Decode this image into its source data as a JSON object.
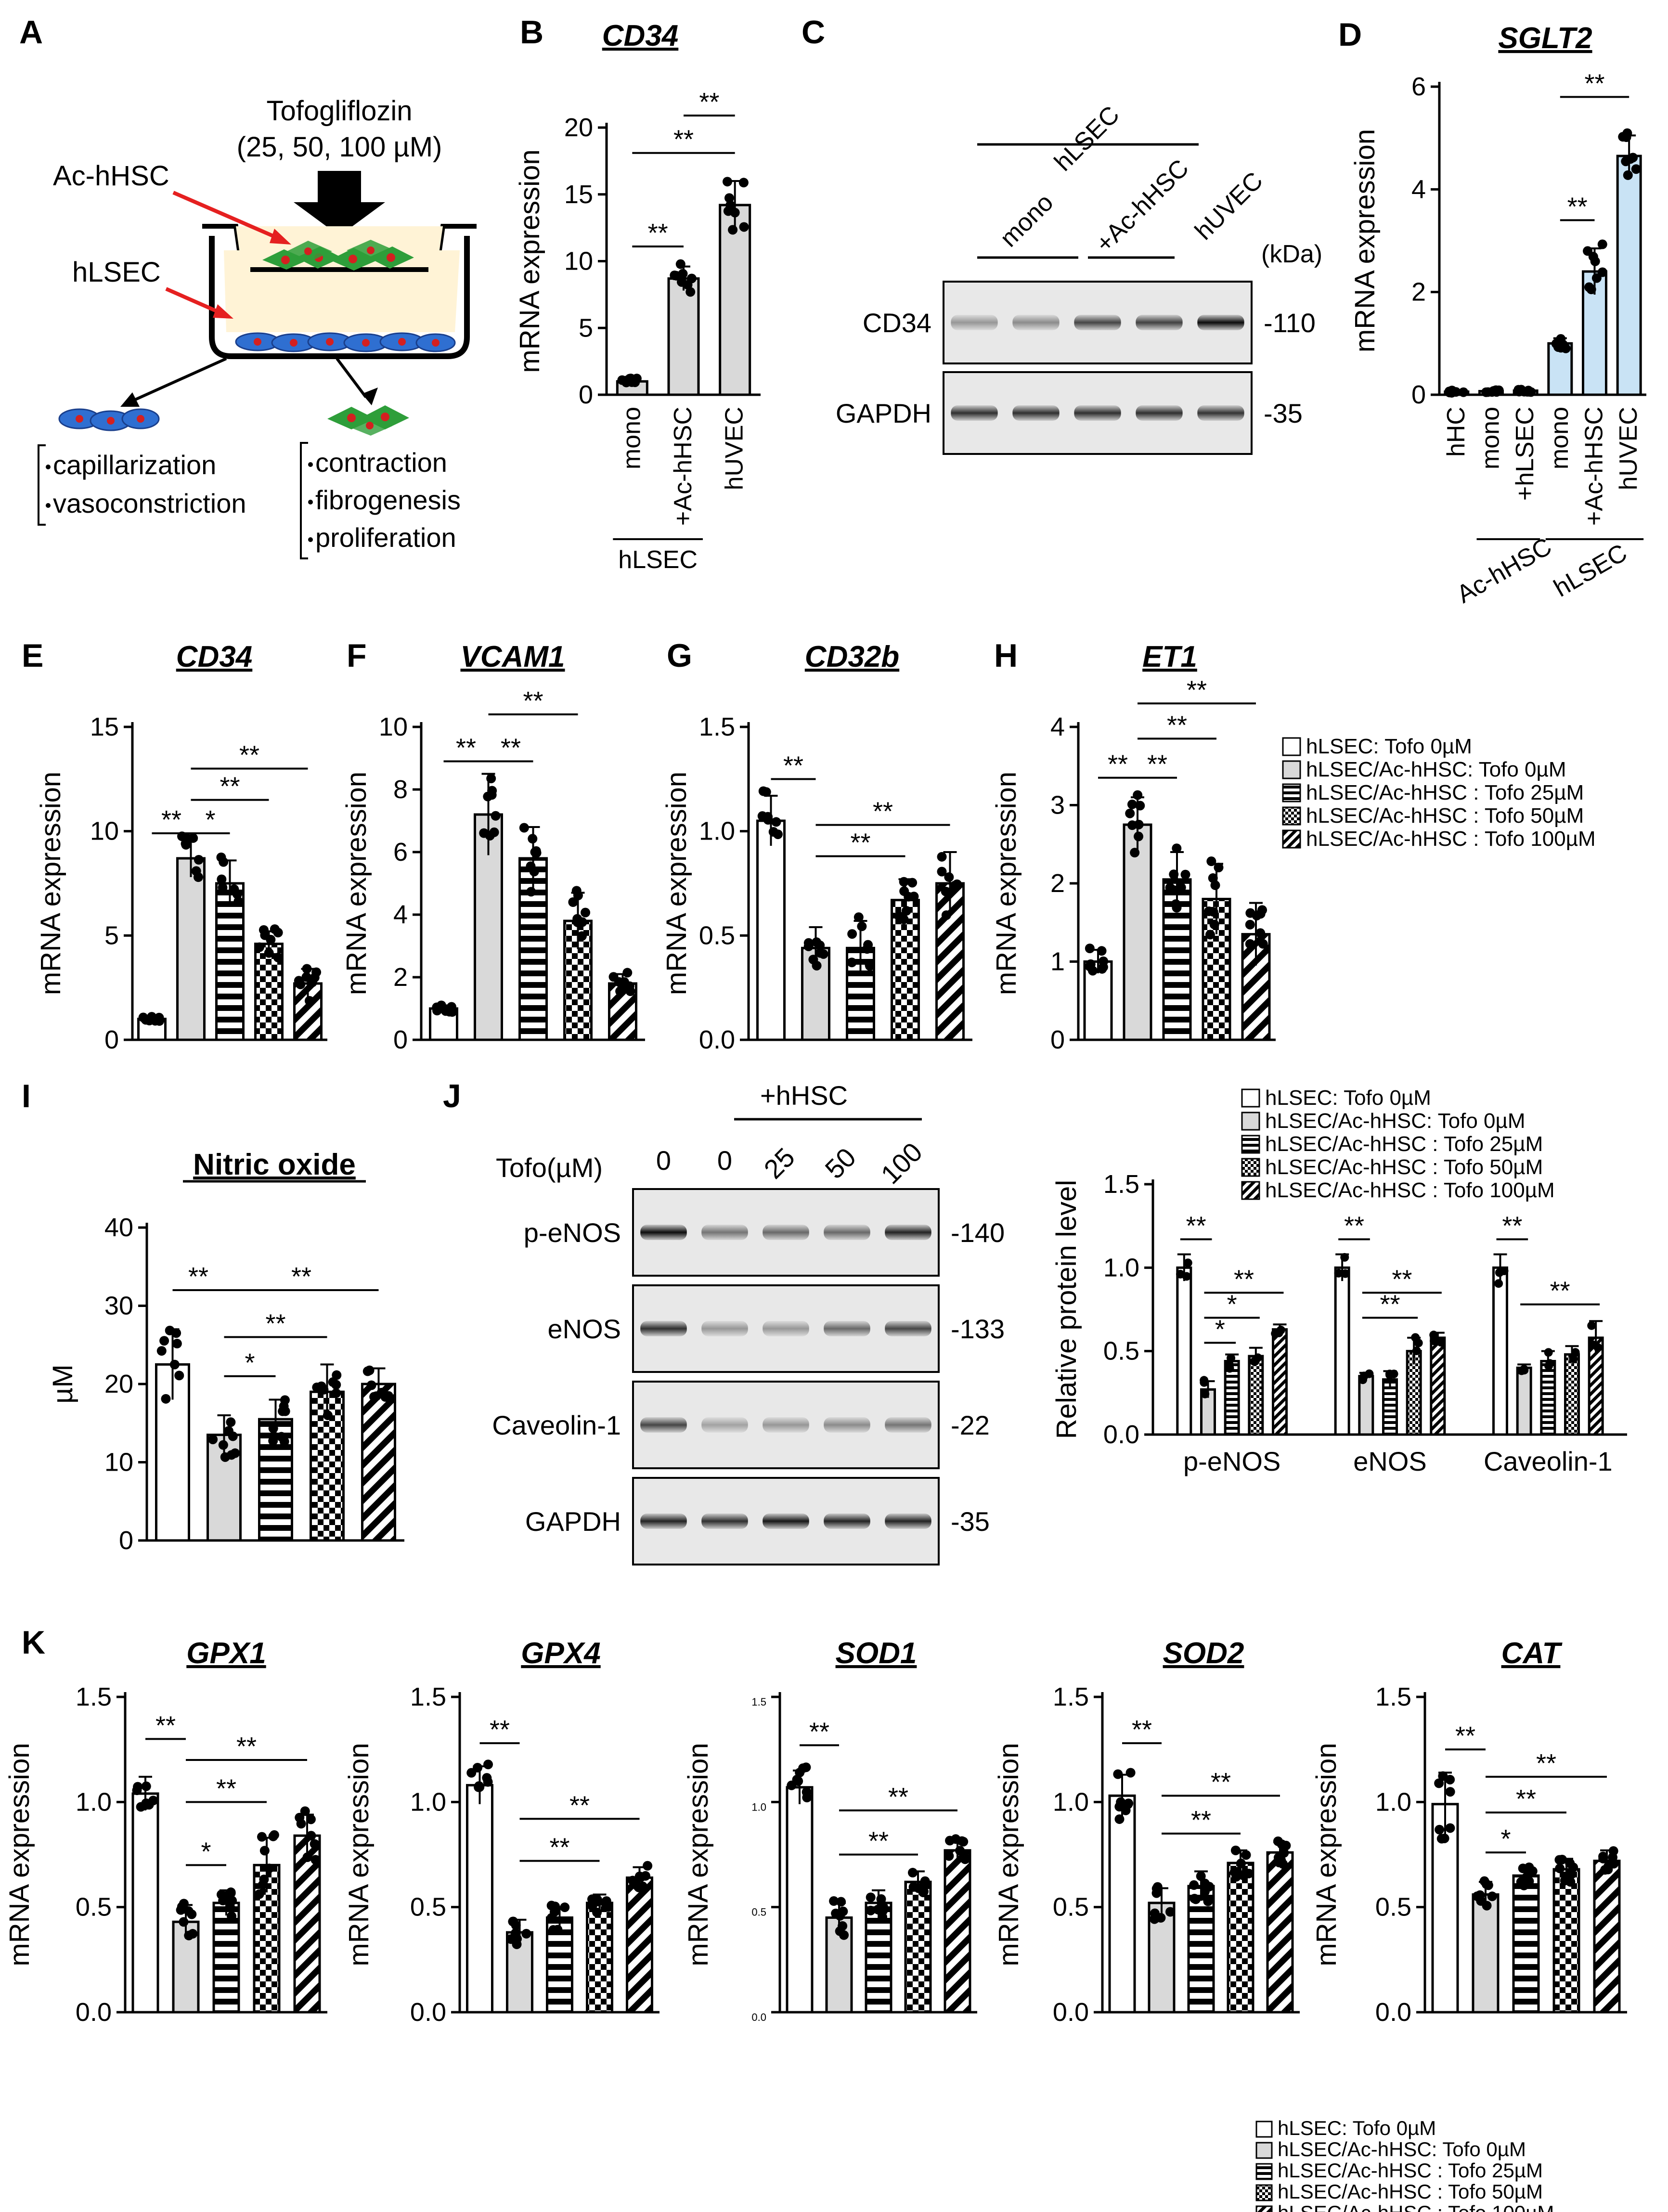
{
  "panel_labels": {
    "A": "A",
    "B": "B",
    "C": "C",
    "D": "D",
    "E": "E",
    "F": "F",
    "G": "G",
    "H": "H",
    "I": "I",
    "J": "J",
    "K": "K"
  },
  "colors": {
    "gray_fill": "#d9d9d9",
    "blue_fill": "#c9e3f5",
    "hsc_green": "#2e9e3a",
    "lsec_blue": "#2f6fd1",
    "nucleus_red": "#d42020",
    "transwell_fill": "#fff3d6",
    "arrow_red": "#e52020"
  },
  "legend_entries": [
    "hLSEC: Tofo 0µM",
    "hLSEC/Ac-hHSC: Tofo 0µM",
    "hLSEC/Ac-hHSC : Tofo 25µM",
    "hLSEC/Ac-hHSC : Tofo 50µM",
    "hLSEC/Ac-hHSC : Tofo 100µM"
  ],
  "schematic": {
    "drug_line1": "Tofogliflozin",
    "drug_line2": "(25, 50, 100 µM)",
    "hsc_label": "Ac-hHSC",
    "lsec_label": "hLSEC",
    "lsec_effects": [
      "capillarization",
      "vasoconstriction"
    ],
    "hsc_effects": [
      "contraction",
      "fibrogenesis",
      "proliferation"
    ]
  },
  "ylabels": {
    "mrna": "mRNA expression",
    "um": "µM",
    "rel_protein": "Relative protein level"
  },
  "blot_C": {
    "group_label": "hLSEC",
    "lane_groups": [
      "mono",
      "+Ac-hHSC",
      "hUVEC"
    ],
    "kda_label": "(kDa)",
    "rows": [
      {
        "name": "CD34",
        "kda": "-110",
        "intensities": [
          0.35,
          0.4,
          0.7,
          0.72,
          0.95
        ]
      },
      {
        "name": "GAPDH",
        "kda": "-35",
        "intensities": [
          0.8,
          0.8,
          0.8,
          0.8,
          0.78
        ]
      }
    ]
  },
  "blot_J": {
    "group_label": "+hHSC",
    "tofo_label": "Tofo(µM)",
    "lanes": [
      "0",
      "0",
      "25",
      "50",
      "100"
    ],
    "rows": [
      {
        "name": "p-eNOS",
        "kda": "-140",
        "intensities": [
          0.95,
          0.5,
          0.55,
          0.55,
          0.85
        ]
      },
      {
        "name": "eNOS",
        "kda": "-133",
        "intensities": [
          0.8,
          0.35,
          0.35,
          0.55,
          0.7
        ]
      },
      {
        "name": "Caveolin-1",
        "kda": "-22",
        "intensities": [
          0.7,
          0.3,
          0.35,
          0.4,
          0.5
        ]
      },
      {
        "name": "GAPDH",
        "kda": "-35",
        "intensities": [
          0.85,
          0.8,
          0.9,
          0.85,
          0.85
        ]
      }
    ]
  },
  "chart_data": [
    {
      "id": "B",
      "type": "bar",
      "title": "CD34",
      "title_italic": true,
      "categories": [
        "mono",
        "+Ac-hHSC",
        "hUVEC"
      ],
      "group_label": "hLSEC",
      "group_span": [
        0,
        1
      ],
      "values": [
        1.0,
        8.7,
        14.2
      ],
      "errors": [
        0.2,
        0.9,
        1.8
      ],
      "fills": [
        "gray",
        "gray",
        "gray"
      ],
      "ylim": [
        0,
        20
      ],
      "yticks": [
        0,
        5,
        10,
        15,
        20
      ],
      "ytick_labels": [
        "0",
        "5",
        "10",
        "15",
        "20"
      ],
      "ylabel": "mRNA expression",
      "sig": [
        {
          "from": 0,
          "to": 1,
          "y": 11.1,
          "label": "**"
        },
        {
          "from": 0,
          "to": 2,
          "y": 18.1,
          "label": "**"
        },
        {
          "from": 1,
          "to": 2,
          "y": 20.9,
          "label": "**"
        }
      ]
    },
    {
      "id": "D",
      "type": "bar",
      "title": "SGLT2",
      "title_italic": true,
      "categories": [
        "hHC",
        "mono",
        "+hLSEC",
        "mono",
        "+Ac-hHSC",
        "hUVEC"
      ],
      "group_labels": [
        {
          "label": "Ac-hHSC",
          "span": [
            1,
            2
          ]
        },
        {
          "label": "hLSEC",
          "span": [
            3,
            5
          ]
        }
      ],
      "values": [
        0.06,
        0.07,
        0.08,
        1.0,
        2.4,
        4.65
      ],
      "errors": [
        0.02,
        0.02,
        0.03,
        0.1,
        0.45,
        0.4
      ],
      "fills": [
        "gray",
        "gray",
        "gray",
        "blue",
        "blue",
        "blue"
      ],
      "ylim": [
        0,
        6
      ],
      "yticks": [
        0,
        2,
        4,
        6
      ],
      "ytick_labels": [
        "0",
        "2",
        "4",
        "6"
      ],
      "ylabel": "mRNA expression",
      "sig": [
        {
          "from": 3,
          "to": 4,
          "y": 3.4,
          "label": "**"
        },
        {
          "from": 3,
          "to": 5,
          "y": 5.8,
          "label": "**"
        }
      ]
    },
    {
      "id": "E",
      "type": "bar",
      "title": "CD34",
      "title_italic": true,
      "values": [
        1.0,
        8.7,
        7.5,
        4.6,
        2.7
      ],
      "errors": [
        0.1,
        0.9,
        1.1,
        0.6,
        0.7
      ],
      "fills": [
        "white",
        "gray",
        "hstripe",
        "checker",
        "diag"
      ],
      "ylim": [
        0,
        15
      ],
      "yticks": [
        0,
        5,
        10,
        15
      ],
      "ytick_labels": [
        "0",
        "5",
        "10",
        "15"
      ],
      "ylabel": "mRNA expression",
      "sig": [
        {
          "from": 0,
          "to": 1,
          "y": 9.9,
          "label": "**"
        },
        {
          "from": 1,
          "to": 2,
          "y": 9.9,
          "label": "*"
        },
        {
          "from": 1,
          "to": 3,
          "y": 11.5,
          "label": "**"
        },
        {
          "from": 1,
          "to": 4,
          "y": 13.0,
          "label": "**"
        }
      ]
    },
    {
      "id": "F",
      "type": "bar",
      "title": "VCAM1",
      "title_italic": true,
      "values": [
        1.0,
        7.2,
        5.8,
        3.8,
        1.8
      ],
      "errors": [
        0.1,
        1.3,
        1.0,
        0.9,
        0.3
      ],
      "fills": [
        "white",
        "gray",
        "hstripe",
        "checker",
        "diag"
      ],
      "ylim": [
        0,
        10
      ],
      "yticks": [
        0,
        2,
        4,
        6,
        8,
        10
      ],
      "ytick_labels": [
        "0",
        "2",
        "4",
        "6",
        "8",
        "10"
      ],
      "ylabel": "mRNA expression",
      "sig": [
        {
          "from": 0,
          "to": 1,
          "y": 8.9,
          "label": "**"
        },
        {
          "from": 1,
          "to": 2,
          "y": 8.9,
          "label": "**"
        },
        {
          "from": 1,
          "to": 3,
          "y": 10.4,
          "label": "**"
        }
      ]
    },
    {
      "id": "G",
      "type": "bar",
      "title": "CD32b",
      "title_italic": true,
      "values": [
        1.05,
        0.44,
        0.44,
        0.67,
        0.75
      ],
      "errors": [
        0.12,
        0.1,
        0.13,
        0.1,
        0.15
      ],
      "fills": [
        "white",
        "gray",
        "hstripe",
        "checker",
        "diag"
      ],
      "ylim": [
        0,
        1.5
      ],
      "yticks": [
        0,
        0.5,
        1.0,
        1.5
      ],
      "ytick_labels": [
        "0.0",
        "0.5",
        "1.0",
        "1.5"
      ],
      "ylabel": "mRNA expression",
      "sig": [
        {
          "from": 0,
          "to": 1,
          "y": 1.25,
          "label": "**"
        },
        {
          "from": 1,
          "to": 3,
          "y": 0.88,
          "label": "**"
        },
        {
          "from": 1,
          "to": 4,
          "y": 1.03,
          "label": "**"
        }
      ]
    },
    {
      "id": "H",
      "type": "bar",
      "title": "ET1",
      "title_italic": true,
      "values": [
        1.0,
        2.75,
        2.05,
        1.8,
        1.35
      ],
      "errors": [
        0.15,
        0.35,
        0.35,
        0.45,
        0.4
      ],
      "fills": [
        "white",
        "gray",
        "hstripe",
        "checker",
        "diag"
      ],
      "ylim": [
        0,
        4
      ],
      "yticks": [
        0,
        1,
        2,
        3,
        4
      ],
      "ytick_labels": [
        "0",
        "1",
        "2",
        "3",
        "4"
      ],
      "ylabel": "mRNA expression",
      "sig": [
        {
          "from": 0,
          "to": 1,
          "y": 3.35,
          "label": "**"
        },
        {
          "from": 1,
          "to": 2,
          "y": 3.35,
          "label": "**"
        },
        {
          "from": 1,
          "to": 3,
          "y": 3.85,
          "label": "**"
        },
        {
          "from": 1,
          "to": 4,
          "y": 4.3,
          "label": "**"
        }
      ]
    },
    {
      "id": "I",
      "type": "bar",
      "title": "Nitric oxide",
      "title_italic": false,
      "values": [
        22.5,
        13.5,
        15.5,
        19.0,
        20.0
      ],
      "errors": [
        4.5,
        2.5,
        2.5,
        3.5,
        2.0
      ],
      "fills": [
        "white",
        "gray",
        "hstripe",
        "checker",
        "diag"
      ],
      "ylim": [
        0,
        40
      ],
      "yticks": [
        0,
        10,
        20,
        30,
        40
      ],
      "ytick_labels": [
        "0",
        "10",
        "20",
        "30",
        "40"
      ],
      "ylabel": "µM",
      "sig": [
        {
          "from": 0,
          "to": 1,
          "y": 32.0,
          "label": "**"
        },
        {
          "from": 1,
          "to": 2,
          "y": 21.0,
          "label": "*"
        },
        {
          "from": 1,
          "to": 3,
          "y": 26.0,
          "label": "**"
        },
        {
          "from": 1,
          "to": 4,
          "y": 32.0,
          "label": "**"
        }
      ]
    },
    {
      "id": "J",
      "type": "grouped_bar",
      "groups": [
        "p-eNOS",
        "eNOS",
        "Caveolin-1"
      ],
      "values": [
        [
          1.0,
          0.27,
          0.44,
          0.47,
          0.63
        ],
        [
          1.0,
          0.35,
          0.33,
          0.5,
          0.58
        ],
        [
          1.0,
          0.4,
          0.44,
          0.48,
          0.58
        ]
      ],
      "errors": [
        [
          0.08,
          0.05,
          0.04,
          0.05,
          0.03
        ],
        [
          0.08,
          0.02,
          0.05,
          0.08,
          0.03
        ],
        [
          0.08,
          0.02,
          0.06,
          0.05,
          0.1
        ]
      ],
      "fills": [
        "white",
        "gray",
        "hstripe",
        "checker",
        "diag"
      ],
      "ylim": [
        0,
        1.5
      ],
      "yticks": [
        0,
        0.5,
        1.0,
        1.5
      ],
      "ytick_labels": [
        "0.0",
        "0.5",
        "1.0",
        "1.5"
      ],
      "ylabel": "Relative protein level",
      "sig": [
        {
          "group": 0,
          "from": 0,
          "to": 1,
          "y": 1.17,
          "label": "**"
        },
        {
          "group": 0,
          "from": 1,
          "to": 2,
          "y": 0.55,
          "label": "*"
        },
        {
          "group": 0,
          "from": 1,
          "to": 3,
          "y": 0.7,
          "label": "*"
        },
        {
          "group": 0,
          "from": 1,
          "to": 4,
          "y": 0.85,
          "label": "**"
        },
        {
          "group": 1,
          "from": 0,
          "to": 1,
          "y": 1.17,
          "label": "**"
        },
        {
          "group": 1,
          "from": 1,
          "to": 3,
          "y": 0.7,
          "label": "**"
        },
        {
          "group": 1,
          "from": 1,
          "to": 4,
          "y": 0.85,
          "label": "**"
        },
        {
          "group": 2,
          "from": 0,
          "to": 1,
          "y": 1.17,
          "label": "**"
        },
        {
          "group": 2,
          "from": 1,
          "to": 4,
          "y": 0.78,
          "label": "**"
        }
      ]
    },
    {
      "id": "K1",
      "type": "bar",
      "title": "GPX1",
      "title_italic": true,
      "values": [
        1.04,
        0.43,
        0.52,
        0.7,
        0.84
      ],
      "errors": [
        0.08,
        0.08,
        0.06,
        0.13,
        0.1
      ],
      "fills": [
        "white",
        "gray",
        "hstripe",
        "checker",
        "diag"
      ],
      "ylim": [
        0,
        1.5
      ],
      "yticks": [
        0,
        0.5,
        1.0,
        1.5
      ],
      "ytick_labels": [
        "0.0",
        "0.5",
        "1.0",
        "1.5"
      ],
      "ylabel": "mRNA expression",
      "sig": [
        {
          "from": 0,
          "to": 1,
          "y": 1.3,
          "label": "**"
        },
        {
          "from": 1,
          "to": 2,
          "y": 0.7,
          "label": "*"
        },
        {
          "from": 1,
          "to": 3,
          "y": 1.0,
          "label": "**"
        },
        {
          "from": 1,
          "to": 4,
          "y": 1.2,
          "label": "**"
        }
      ]
    },
    {
      "id": "K2",
      "type": "bar",
      "title": "GPX4",
      "title_italic": true,
      "values": [
        1.08,
        0.38,
        0.45,
        0.52,
        0.64
      ],
      "errors": [
        0.09,
        0.06,
        0.05,
        0.04,
        0.05
      ],
      "fills": [
        "white",
        "gray",
        "hstripe",
        "checker",
        "diag"
      ],
      "ylim": [
        0,
        1.5
      ],
      "yticks": [
        0,
        0.5,
        1.0,
        1.5
      ],
      "ytick_labels": [
        "0.0",
        "0.5",
        "1.0",
        "1.5"
      ],
      "ylabel": "mRNA expression",
      "sig": [
        {
          "from": 0,
          "to": 1,
          "y": 1.28,
          "label": "**"
        },
        {
          "from": 1,
          "to": 3,
          "y": 0.72,
          "label": "**"
        },
        {
          "from": 1,
          "to": 4,
          "y": 0.92,
          "label": "**"
        }
      ]
    },
    {
      "id": "K3",
      "type": "bar",
      "title": "SOD1",
      "title_italic": true,
      "values": [
        1.07,
        0.45,
        0.52,
        0.62,
        0.77
      ],
      "errors": [
        0.08,
        0.07,
        0.06,
        0.05,
        0.06
      ],
      "fills": [
        "white",
        "gray",
        "hstripe",
        "checker",
        "diag"
      ],
      "ylim": [
        0,
        1.5
      ],
      "yticks": [
        0,
        0.5,
        1.0,
        1.5
      ],
      "ytick_labels": [
        "0.0",
        "0.5",
        "1.0",
        "1.5"
      ],
      "ylabel": "mRNA expression",
      "sig": [
        {
          "from": 0,
          "to": 1,
          "y": 1.27,
          "label": "**"
        },
        {
          "from": 1,
          "to": 3,
          "y": 0.75,
          "label": "**"
        },
        {
          "from": 1,
          "to": 4,
          "y": 0.96,
          "label": "**"
        }
      ]
    },
    {
      "id": "K4",
      "type": "bar",
      "title": "SOD2",
      "title_italic": true,
      "values": [
        1.03,
        0.52,
        0.6,
        0.71,
        0.76
      ],
      "errors": [
        0.1,
        0.07,
        0.07,
        0.06,
        0.05
      ],
      "fills": [
        "white",
        "gray",
        "hstripe",
        "checker",
        "diag"
      ],
      "ylim": [
        0,
        1.5
      ],
      "yticks": [
        0,
        0.5,
        1.0,
        1.5
      ],
      "ytick_labels": [
        "0.0",
        "0.5",
        "1.0",
        "1.5"
      ],
      "ylabel": "mRNA expression",
      "sig": [
        {
          "from": 0,
          "to": 1,
          "y": 1.28,
          "label": "**"
        },
        {
          "from": 1,
          "to": 3,
          "y": 0.85,
          "label": "**"
        },
        {
          "from": 1,
          "to": 4,
          "y": 1.03,
          "label": "**"
        }
      ]
    },
    {
      "id": "K5",
      "type": "bar",
      "title": "CAT",
      "title_italic": true,
      "values": [
        0.99,
        0.56,
        0.65,
        0.68,
        0.72
      ],
      "errors": [
        0.15,
        0.06,
        0.04,
        0.05,
        0.05
      ],
      "fills": [
        "white",
        "gray",
        "hstripe",
        "checker",
        "diag"
      ],
      "ylim": [
        0,
        1.5
      ],
      "yticks": [
        0,
        0.5,
        1.0,
        1.5
      ],
      "ytick_labels": [
        "0.0",
        "0.5",
        "1.0",
        "1.5"
      ],
      "ylabel": "mRNA expression",
      "sig": [
        {
          "from": 0,
          "to": 1,
          "y": 1.25,
          "label": "**"
        },
        {
          "from": 1,
          "to": 2,
          "y": 0.76,
          "label": "*"
        },
        {
          "from": 1,
          "to": 3,
          "y": 0.95,
          "label": "**"
        },
        {
          "from": 1,
          "to": 4,
          "y": 1.12,
          "label": "**"
        }
      ]
    }
  ]
}
